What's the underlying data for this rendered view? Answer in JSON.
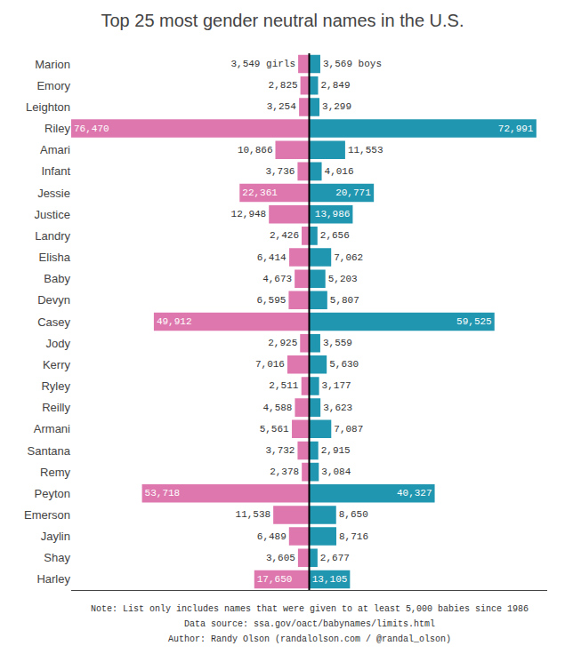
{
  "chart_data": {
    "type": "bar",
    "orientation": "horizontal",
    "title": "Top 25 most gender neutral names in the U.S.",
    "categories": [
      "Marion",
      "Emory",
      "Leighton",
      "Riley",
      "Amari",
      "Infant",
      "Jessie",
      "Justice",
      "Landry",
      "Elisha",
      "Baby",
      "Devyn",
      "Casey",
      "Jody",
      "Kerry",
      "Ryley",
      "Reilly",
      "Armani",
      "Santana",
      "Remy",
      "Peyton",
      "Emerson",
      "Jaylin",
      "Shay",
      "Harley"
    ],
    "series": [
      {
        "name": "girls",
        "color": "#de77ae",
        "values": [
          3549,
          2825,
          3254,
          76470,
          10866,
          3736,
          22361,
          12948,
          2426,
          6414,
          4673,
          6595,
          49912,
          2925,
          7016,
          2511,
          4588,
          5561,
          3732,
          2378,
          53718,
          11538,
          6489,
          3605,
          17650
        ],
        "value_labels": [
          "3,549 girls",
          "2,825",
          "3,254",
          "76,470",
          "10,866",
          "3,736",
          "22,361",
          "12,948",
          "2,426",
          "6,414",
          "4,673",
          "6,595",
          "49,912",
          "2,925",
          "7,016",
          "2,511",
          "4,588",
          "5,561",
          "3,732",
          "2,378",
          "53,718",
          "11,538",
          "6,489",
          "3,605",
          "17,650"
        ]
      },
      {
        "name": "boys",
        "color": "#2196b0",
        "values": [
          3569,
          2849,
          3299,
          72991,
          11553,
          4016,
          20771,
          13986,
          2656,
          7062,
          5203,
          5807,
          59525,
          3559,
          5630,
          3177,
          3623,
          7087,
          2915,
          3084,
          40327,
          8650,
          8716,
          2677,
          13105
        ],
        "value_labels": [
          "3,569 boys",
          "2,849",
          "3,299",
          "72,991",
          "11,553",
          "4,016",
          "20,771",
          "13,986",
          "2,656",
          "7,062",
          "5,203",
          "5,807",
          "59,525",
          "3,559",
          "5,630",
          "3,177",
          "3,623",
          "7,087",
          "2,915",
          "3,084",
          "40,327",
          "8,650",
          "8,716",
          "2,677",
          "13,105"
        ]
      }
    ],
    "xlim": [
      0,
      76470
    ],
    "data_labels": true,
    "tick_labels": "y",
    "grid": false,
    "legend": false,
    "annotations": [
      "Note: List only includes names that were given to at least 5,000 babies since 1986",
      "Data source: ssa.gov/oact/babynames/limits.html",
      "Author: Randy Olson (randalolson.com / @randal_olson)"
    ]
  }
}
